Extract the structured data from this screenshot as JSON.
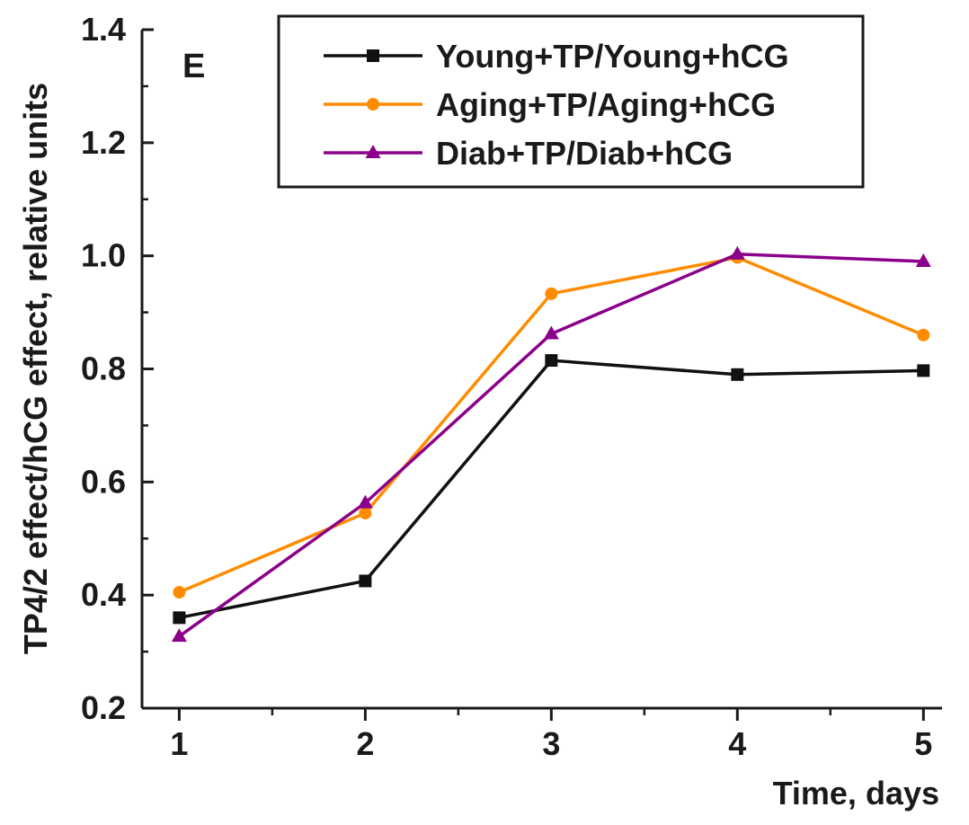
{
  "chart_data": {
    "type": "line",
    "panel_label": "E",
    "xlabel": "Time, days",
    "ylabel": "TP4/2 effect/hCG effect, relative units",
    "x": [
      1,
      2,
      3,
      4,
      5
    ],
    "x_tick_labels": [
      "1",
      "2",
      "3",
      "4",
      "5"
    ],
    "xlim": [
      0.8,
      5.1
    ],
    "ylim": [
      0.2,
      1.4
    ],
    "y_ticks": [
      0.2,
      0.4,
      0.6,
      0.8,
      1.0,
      1.2,
      1.4
    ],
    "y_tick_labels": [
      "0.2",
      "0.4",
      "0.6",
      "0.8",
      "1.0",
      "1.2",
      "1.4"
    ],
    "grid": false,
    "legend_position": "top-right",
    "series": [
      {
        "name": "Young+TP/Young+hCG",
        "color": "#111111",
        "marker": "square",
        "values": [
          0.36,
          0.425,
          0.815,
          0.79,
          0.797
        ]
      },
      {
        "name": "Aging+TP/Aging+hCG",
        "color": "#ff8c00",
        "marker": "circle",
        "values": [
          0.405,
          0.545,
          0.933,
          0.997,
          0.86
        ]
      },
      {
        "name": "Diab+TP/Diab+hCG",
        "color": "#8b008b",
        "marker": "triangle",
        "values": [
          0.327,
          0.563,
          0.862,
          1.003,
          0.99
        ]
      }
    ]
  }
}
